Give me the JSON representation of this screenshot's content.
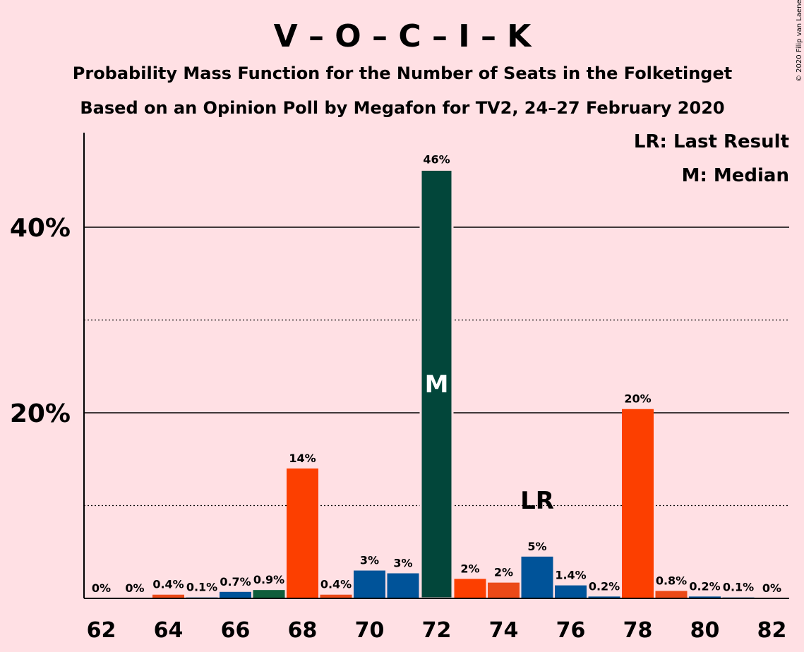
{
  "title": "V – O – C – I – K",
  "subtitle1": "Probability Mass Function for the Number of Seats in the Folketinget",
  "subtitle2": "Based on an Opinion Poll by Megafon for TV2, 24–27 February 2020",
  "legend_lr": "LR: Last Result",
  "legend_m": "M: Median",
  "copyright": "© 2020 Filip van Laenen",
  "colors": {
    "background": "#ffe0e4",
    "V": "#005399",
    "O": "#02463a",
    "C": "#fc3f00",
    "I": "#eb4a18",
    "K": "#0f5e3c"
  },
  "chart_data": {
    "type": "bar",
    "title": "V – O – C – I – K",
    "x": [
      62,
      63,
      64,
      65,
      66,
      67,
      68,
      69,
      70,
      71,
      72,
      73,
      74,
      75,
      76,
      77,
      78,
      79,
      80,
      81,
      82
    ],
    "values": [
      0,
      0,
      0.4,
      0.1,
      0.7,
      0.9,
      14,
      0.4,
      3,
      2.7,
      46.2,
      2.1,
      1.7,
      4.5,
      1.4,
      0.2,
      20.4,
      0.8,
      0.2,
      0.1,
      0
    ],
    "labels": [
      "0%",
      "0%",
      "0.4%",
      "0.1%",
      "0.7%",
      "0.9%",
      "14%",
      "0.4%",
      "3%",
      "3%",
      "46%",
      "2%",
      "2%",
      "5%",
      "1.4%",
      "0.2%",
      "20%",
      "0.8%",
      "0.2%",
      "0.1%",
      "0%"
    ],
    "bar_colors": [
      "#005399",
      "#005399",
      "#eb4a18",
      "#005399",
      "#005399",
      "#0f5e3c",
      "#fc3f00",
      "#eb4a18",
      "#005399",
      "#005399",
      "#02463a",
      "#fc3f00",
      "#eb4a18",
      "#005399",
      "#005399",
      "#005399",
      "#fc3f00",
      "#eb4a18",
      "#005399",
      "#005399",
      "#005399"
    ],
    "x_tick_labels": [
      "62",
      "64",
      "66",
      "68",
      "70",
      "72",
      "74",
      "76",
      "78",
      "80",
      "82"
    ],
    "y_tick_labels": [
      "20%",
      "40%"
    ],
    "ylim": [
      0,
      50
    ],
    "y_solid_gridlines": [
      20,
      40
    ],
    "y_dotted_gridlines": [
      10,
      30
    ],
    "median": 72,
    "median_label": "M",
    "last_result": 75,
    "last_result_label": "LR",
    "legend_position": "top-right"
  }
}
